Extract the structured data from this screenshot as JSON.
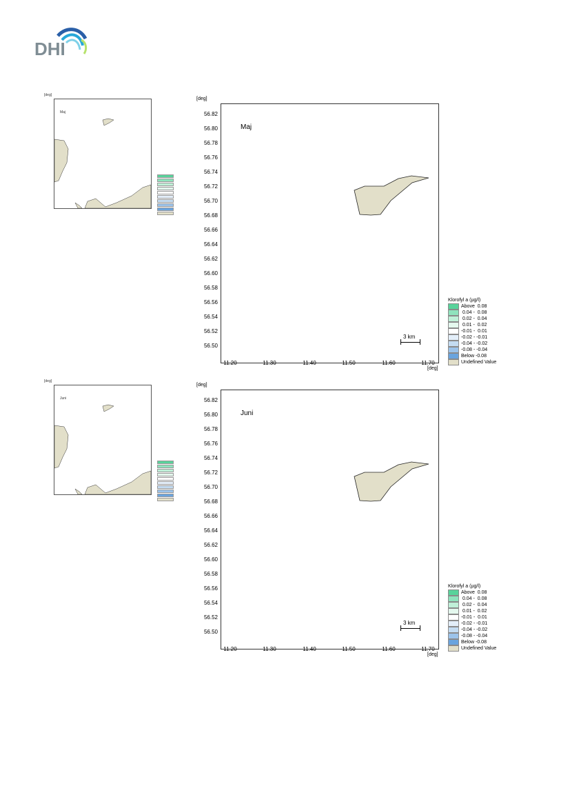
{
  "logo": {
    "text": "DHI",
    "colors": [
      "#2a5fa8",
      "#27a7d8",
      "#7fd1e8",
      "#b7e26c"
    ]
  },
  "colors": {
    "land": "#e2dfc9",
    "outline": "#222222"
  },
  "panels": [
    {
      "month": "Maj",
      "thumb": {
        "month": "Maj",
        "deg": "[deg]"
      },
      "main": {
        "ydeg": "[deg]",
        "xdeg": "[deg]",
        "yticks": [
          "56.82",
          "56.80",
          "56.78",
          "56.76",
          "56.74",
          "56.72",
          "56.70",
          "56.68",
          "56.66",
          "56.64",
          "56.62",
          "56.60",
          "56.58",
          "56.56",
          "56.54",
          "56.52",
          "56.50"
        ],
        "xticks": [
          "11.20",
          "11.30",
          "11.40",
          "11.50",
          "11.60",
          "11.70"
        ],
        "scale": "3 km",
        "legend_title": "Klorofyl a (µg/l)",
        "legend": [
          {
            "label": "Above  0.08",
            "color": "#58d39b"
          },
          {
            "label": " 0.04 -  0.08",
            "color": "#8fe3bd"
          },
          {
            "label": " 0.02 -  0.04",
            "color": "#bff0d8"
          },
          {
            "label": " 0.01 -  0.02",
            "color": "#e4f8ee"
          },
          {
            "label": "-0.01 -  0.01",
            "color": "#ffffff"
          },
          {
            "label": "-0.02 - -0.01",
            "color": "#e3eef9"
          },
          {
            "label": "-0.04 - -0.02",
            "color": "#c4dcf2"
          },
          {
            "label": "-0.08 - -0.04",
            "color": "#9cc3ea"
          },
          {
            "label": "Below -0.08",
            "color": "#6aa4de"
          },
          {
            "label": "Undefined Value",
            "color": "#e2dfc9"
          }
        ]
      }
    },
    {
      "month": "Juni",
      "thumb": {
        "month": "Juni",
        "deg": "[deg]"
      },
      "main": {
        "ydeg": "[deg]",
        "xdeg": "[deg]",
        "yticks": [
          "56.82",
          "56.80",
          "56.78",
          "56.76",
          "56.74",
          "56.72",
          "56.70",
          "56.68",
          "56.66",
          "56.64",
          "56.62",
          "56.60",
          "56.58",
          "56.56",
          "56.54",
          "56.52",
          "56.50"
        ],
        "xticks": [
          "11.20",
          "11.30",
          "11.40",
          "11.50",
          "11.60",
          "11.70"
        ],
        "scale": "3 km",
        "legend_title": "Klorofyl a (µg/l)",
        "legend": [
          {
            "label": "Above  0.08",
            "color": "#58d39b"
          },
          {
            "label": " 0.04 -  0.08",
            "color": "#8fe3bd"
          },
          {
            "label": " 0.02 -  0.04",
            "color": "#bff0d8"
          },
          {
            "label": " 0.01 -  0.02",
            "color": "#e4f8ee"
          },
          {
            "label": "-0.01 -  0.01",
            "color": "#ffffff"
          },
          {
            "label": "-0.02 - -0.01",
            "color": "#e3eef9"
          },
          {
            "label": "-0.04 - -0.02",
            "color": "#c4dcf2"
          },
          {
            "label": "-0.08 - -0.04",
            "color": "#9cc3ea"
          },
          {
            "label": "Below -0.08",
            "color": "#6aa4de"
          },
          {
            "label": "Undefined Value",
            "color": "#e2dfc9"
          }
        ]
      }
    }
  ]
}
